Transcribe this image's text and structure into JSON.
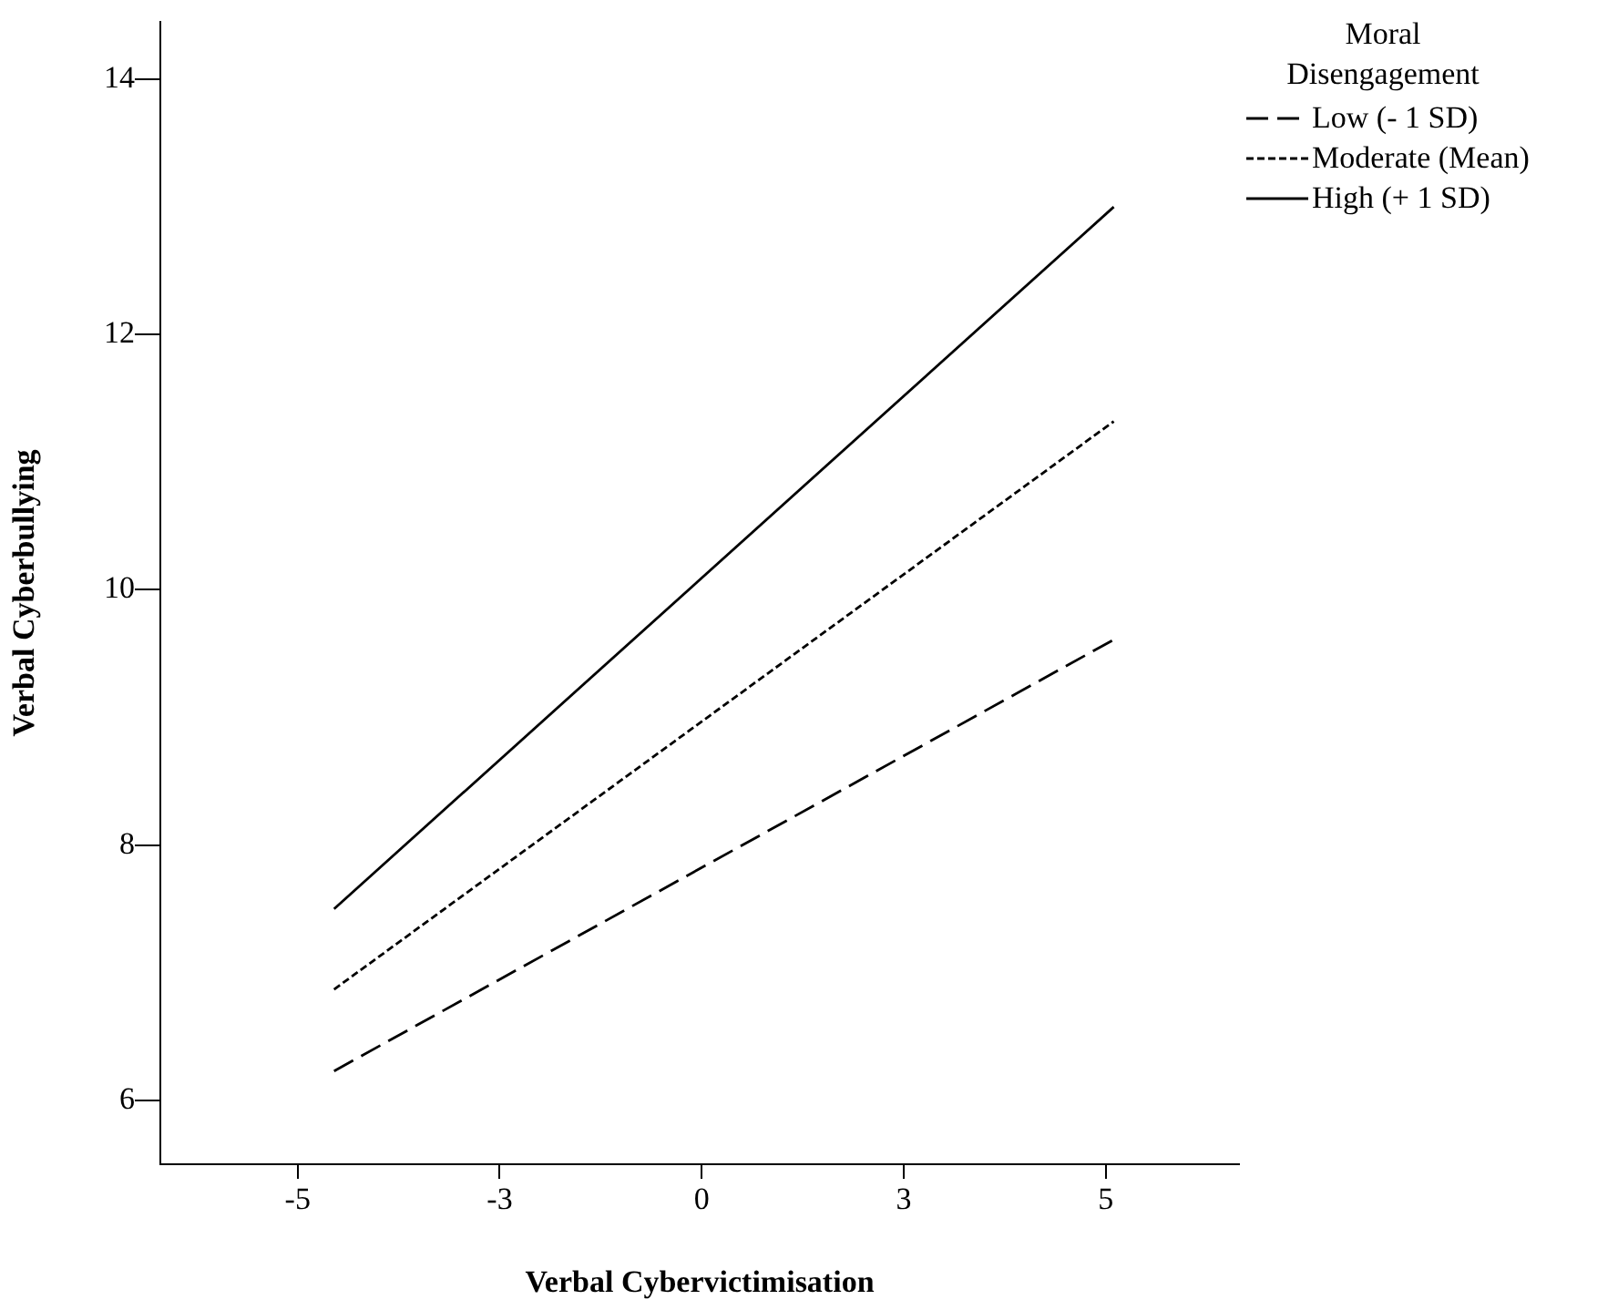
{
  "chart_data": {
    "type": "line",
    "xlabel": "Verbal Cybervictimisation",
    "ylabel": "Verbal Cyberbullying",
    "legend_title": "Moral Disengagement",
    "xlim": [
      -6.7,
      6.65
    ],
    "ylim": [
      5.5,
      14.45
    ],
    "xticks": [
      -5,
      {
        "value": -2.5,
        "label": "-3"
      },
      0,
      {
        "value": 2.5,
        "label": "3"
      },
      5
    ],
    "yticks": [
      6,
      8,
      10,
      12,
      14
    ],
    "x": [
      -4.55,
      5.1
    ],
    "series": [
      {
        "name": "Low (- 1 SD)",
        "color": "#000000",
        "values": [
          6.23,
          9.61
        ],
        "line_style": "dashed"
      },
      {
        "name": "Moderate (Mean)",
        "color": "#000000",
        "values": [
          6.87,
          11.32
        ],
        "line_style": "dotted"
      },
      {
        "name": "High (+ 1 SD)",
        "color": "#000000",
        "values": [
          7.5,
          13.0
        ],
        "line_style": "solid"
      }
    ],
    "grid": false,
    "legend": "top right",
    "marker": "none"
  }
}
